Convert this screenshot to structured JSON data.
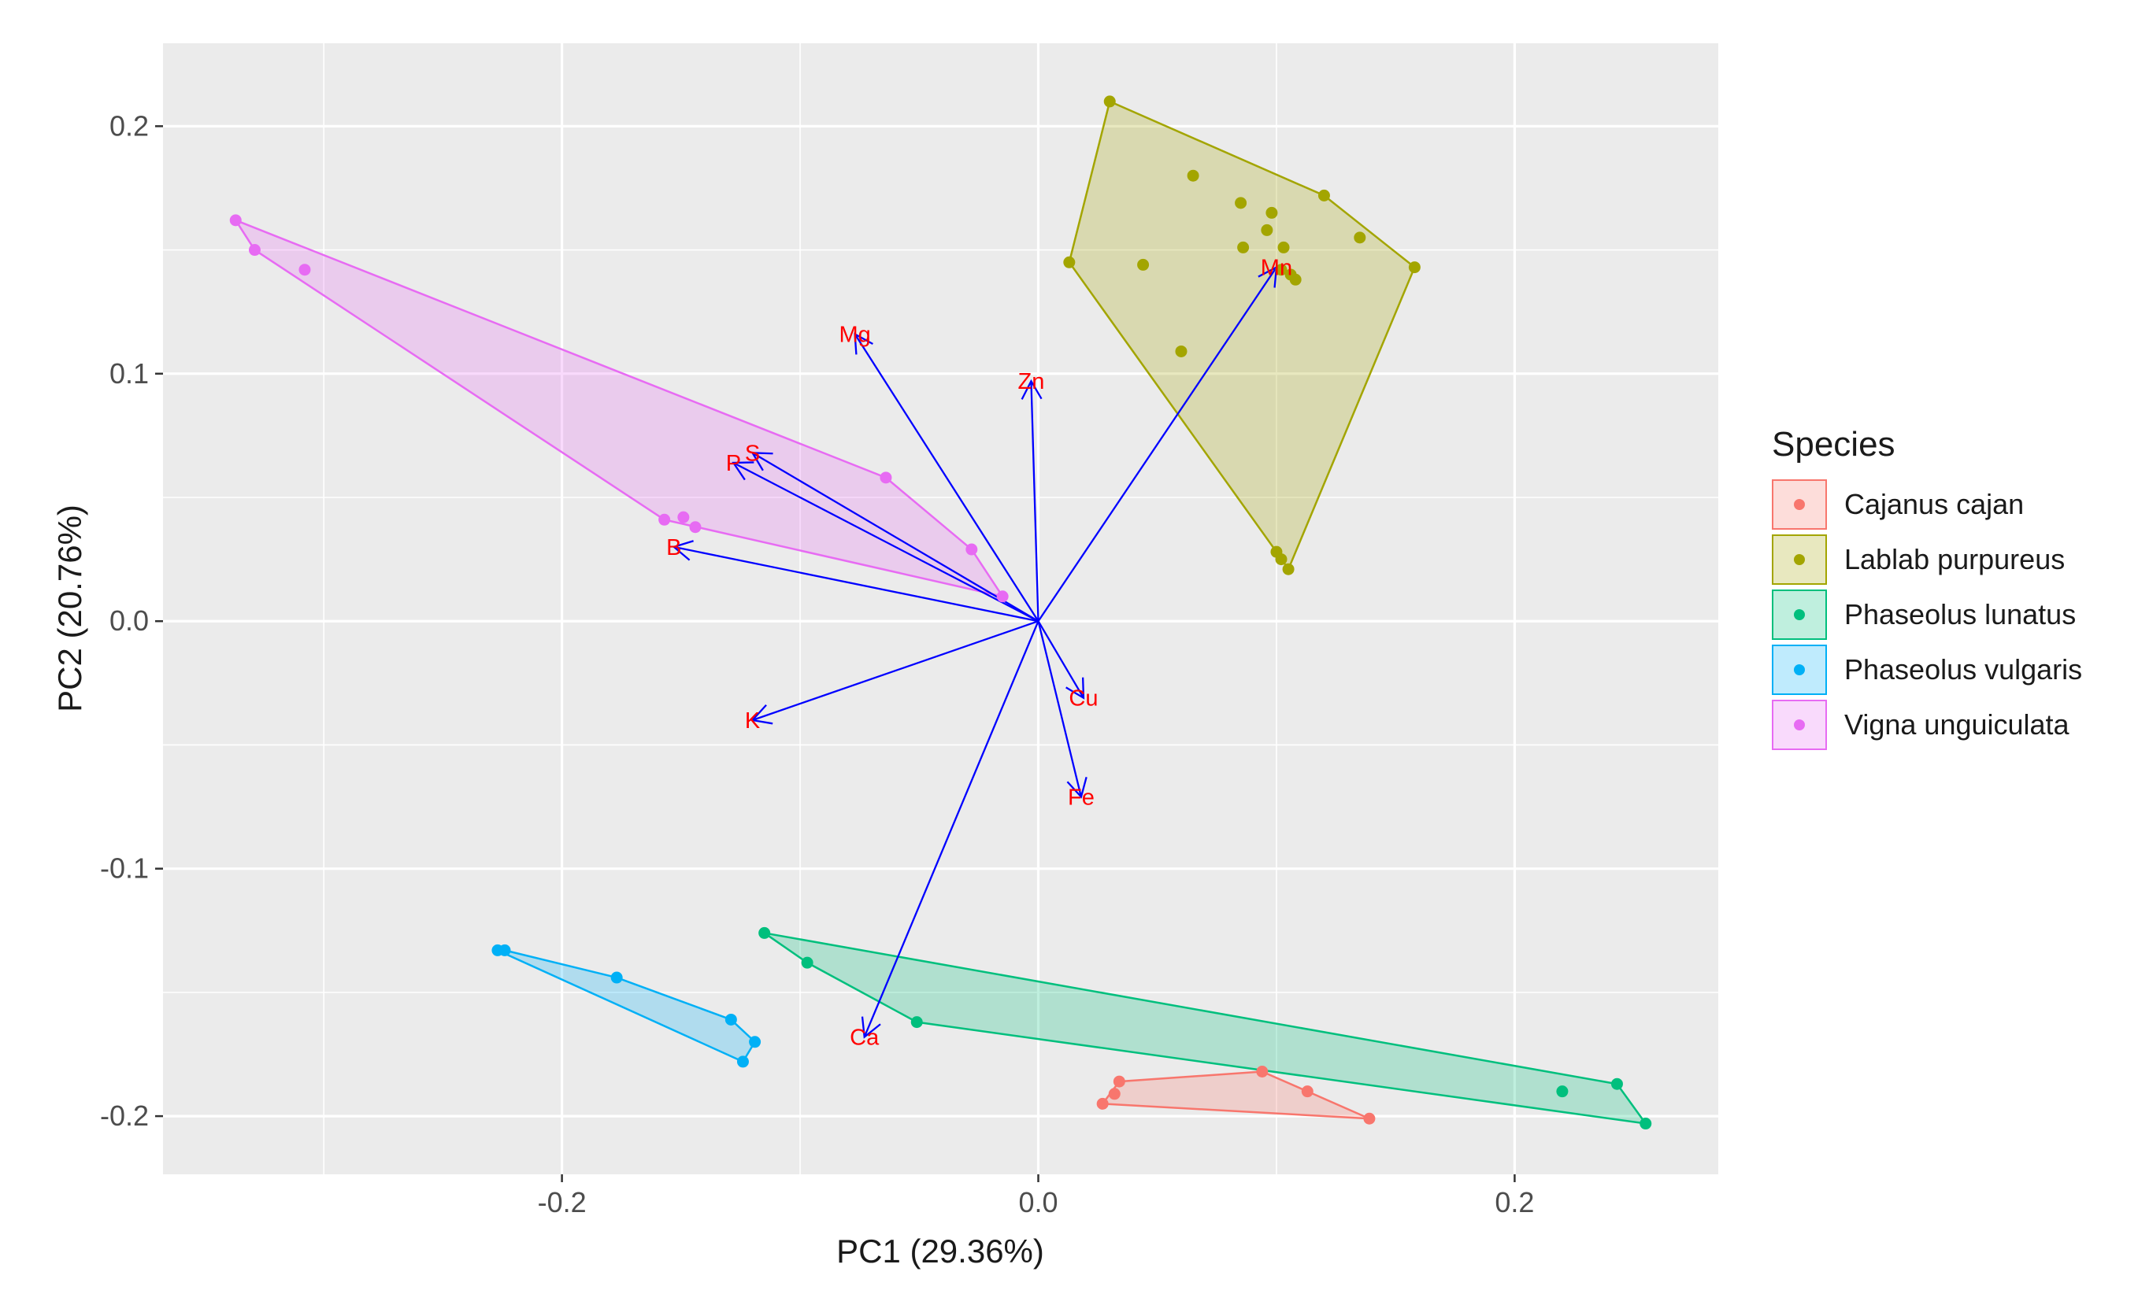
{
  "chart_data": {
    "type": "scatter",
    "subtype": "pca-biplot",
    "xlabel": "PC1 (29.36%)",
    "ylabel": "PC2 (20.76%)",
    "xlim": [
      -0.3675,
      0.2855
    ],
    "ylim": [
      -0.2235,
      0.2335
    ],
    "xticks": [
      -0.2,
      0.0,
      0.2
    ],
    "yticks": [
      -0.2,
      -0.1,
      0.0,
      0.1,
      0.2
    ],
    "xtick_labels": [
      "-0.2",
      "0.0",
      "0.2"
    ],
    "ytick_labels": [
      "-0.2",
      "-0.1",
      "0.0",
      "0.1",
      "0.2"
    ],
    "grid": true,
    "legend_title": "Species",
    "legend_position": "right",
    "series": [
      {
        "name": "Cajanus cajan",
        "color": "#f8766d",
        "points": [
          [
            0.027,
            -0.195
          ],
          [
            0.032,
            -0.191
          ],
          [
            0.034,
            -0.186
          ],
          [
            0.094,
            -0.182
          ],
          [
            0.113,
            -0.19
          ],
          [
            0.139,
            -0.201
          ]
        ],
        "hull": [
          [
            0.027,
            -0.195
          ],
          [
            0.034,
            -0.186
          ],
          [
            0.094,
            -0.182
          ],
          [
            0.113,
            -0.19
          ],
          [
            0.139,
            -0.201
          ]
        ]
      },
      {
        "name": "Lablab purpureus",
        "color": "#a3a500",
        "points": [
          [
            0.03,
            0.21
          ],
          [
            0.013,
            0.145
          ],
          [
            0.044,
            0.144
          ],
          [
            0.065,
            0.18
          ],
          [
            0.085,
            0.169
          ],
          [
            0.098,
            0.165
          ],
          [
            0.096,
            0.158
          ],
          [
            0.086,
            0.151
          ],
          [
            0.103,
            0.151
          ],
          [
            0.102,
            0.142
          ],
          [
            0.106,
            0.14
          ],
          [
            0.108,
            0.138
          ],
          [
            0.12,
            0.172
          ],
          [
            0.135,
            0.155
          ],
          [
            0.158,
            0.143
          ],
          [
            0.06,
            0.109
          ],
          [
            0.1,
            0.028
          ],
          [
            0.102,
            0.025
          ],
          [
            0.105,
            0.021
          ]
        ],
        "hull": [
          [
            0.03,
            0.21
          ],
          [
            0.12,
            0.172
          ],
          [
            0.158,
            0.143
          ],
          [
            0.105,
            0.021
          ],
          [
            0.1,
            0.028
          ],
          [
            0.013,
            0.145
          ]
        ]
      },
      {
        "name": "Phaseolus lunatus",
        "color": "#00bf7d",
        "points": [
          [
            -0.115,
            -0.126
          ],
          [
            -0.097,
            -0.138
          ],
          [
            -0.051,
            -0.162
          ],
          [
            0.22,
            -0.19
          ],
          [
            0.243,
            -0.187
          ],
          [
            0.255,
            -0.203
          ]
        ],
        "hull": [
          [
            -0.115,
            -0.126
          ],
          [
            0.243,
            -0.187
          ],
          [
            0.255,
            -0.203
          ],
          [
            -0.051,
            -0.162
          ],
          [
            -0.097,
            -0.138
          ]
        ]
      },
      {
        "name": "Phaseolus vulgaris",
        "color": "#00b0f6",
        "points": [
          [
            -0.227,
            -0.133
          ],
          [
            -0.224,
            -0.133
          ],
          [
            -0.177,
            -0.144
          ],
          [
            -0.129,
            -0.161
          ],
          [
            -0.119,
            -0.17
          ],
          [
            -0.124,
            -0.178
          ]
        ],
        "hull": [
          [
            -0.227,
            -0.133
          ],
          [
            -0.224,
            -0.133
          ],
          [
            -0.177,
            -0.144
          ],
          [
            -0.129,
            -0.161
          ],
          [
            -0.119,
            -0.17
          ],
          [
            -0.124,
            -0.178
          ]
        ]
      },
      {
        "name": "Vigna unguiculata",
        "color": "#e76bf3",
        "points": [
          [
            -0.337,
            0.162
          ],
          [
            -0.329,
            0.15
          ],
          [
            -0.308,
            0.142
          ],
          [
            -0.064,
            0.058
          ],
          [
            -0.157,
            0.041
          ],
          [
            -0.149,
            0.042
          ],
          [
            -0.144,
            0.038
          ],
          [
            -0.028,
            0.029
          ],
          [
            -0.015,
            0.01
          ]
        ],
        "hull": [
          [
            -0.337,
            0.162
          ],
          [
            -0.064,
            0.058
          ],
          [
            -0.028,
            0.029
          ],
          [
            -0.015,
            0.01
          ],
          [
            -0.157,
            0.041
          ],
          [
            -0.329,
            0.15
          ]
        ]
      }
    ],
    "loadings": {
      "color": "#0000ff",
      "label_color": "#ff0000",
      "vectors": [
        {
          "label": "Mg",
          "x": -0.077,
          "y": 0.116
        },
        {
          "label": "Zn",
          "x": -0.003,
          "y": 0.097
        },
        {
          "label": "Mn",
          "x": 0.1,
          "y": 0.143
        },
        {
          "label": "S",
          "x": -0.12,
          "y": 0.068
        },
        {
          "label": "P",
          "x": -0.128,
          "y": 0.064
        },
        {
          "label": "B",
          "x": -0.153,
          "y": 0.03
        },
        {
          "label": "K",
          "x": -0.12,
          "y": -0.04
        },
        {
          "label": "Cu",
          "x": 0.019,
          "y": -0.031
        },
        {
          "label": "Fe",
          "x": 0.018,
          "y": -0.071
        },
        {
          "label": "Ca",
          "x": -0.073,
          "y": -0.168
        }
      ]
    }
  }
}
